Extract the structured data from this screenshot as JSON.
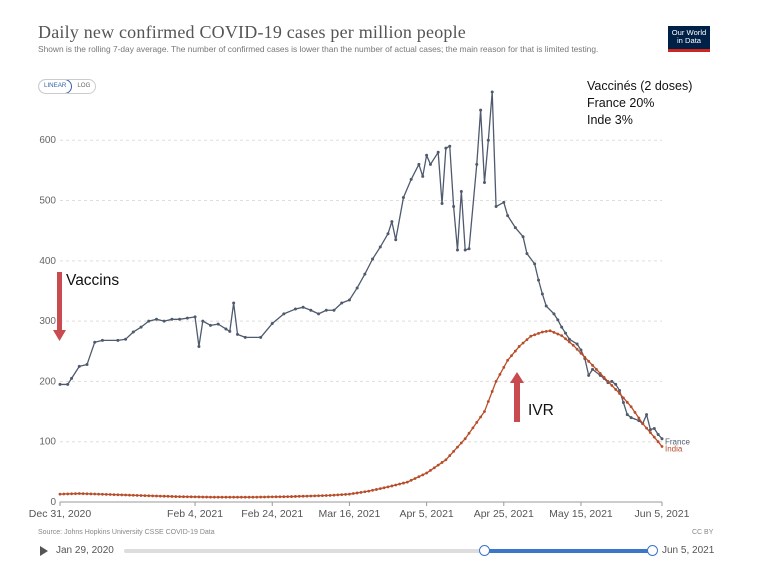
{
  "header": {
    "title": "Daily new confirmed COVID-19 cases per million people",
    "subtitle": "Shown is the rolling 7-day average. The number of confirmed cases is lower than the number of actual cases; the main reason for that is limited testing.",
    "logo_line1": "Our World",
    "logo_line2": "in Data",
    "logo_colors": {
      "bg": "#002147",
      "accent": "#ce261e"
    }
  },
  "controls": {
    "linear_label": "LINEAR",
    "log_label": "LOG",
    "active": "LINEAR"
  },
  "annotations": {
    "vaccines_box": [
      "Vaccinés (2 doses)",
      "France 20%",
      "Inde 3%"
    ],
    "vaccins_label": "Vaccins",
    "ivr_label": "IVR",
    "arrow_color": "#c94a4f"
  },
  "footer": {
    "source": "Source: Johns Hopkins University CSSE COVID-19 Data",
    "license": "CC BY",
    "timeline_start": "Jan 29, 2020",
    "timeline_end": "Jun 5, 2021"
  },
  "chart_data": {
    "type": "line",
    "title": "Daily new confirmed COVID-19 cases per million people",
    "xlabel": "",
    "ylabel": "",
    "ylim": [
      0,
      680
    ],
    "yticks": [
      0,
      100,
      200,
      300,
      400,
      500,
      600
    ],
    "xlim_days": [
      0,
      156
    ],
    "x_tick_labels": [
      {
        "day": 0,
        "label": "Dec 31, 2020"
      },
      {
        "day": 35,
        "label": "Feb 4, 2021"
      },
      {
        "day": 55,
        "label": "Feb 24, 2021"
      },
      {
        "day": 75,
        "label": "Mar 16, 2021"
      },
      {
        "day": 95,
        "label": "Apr 5, 2021"
      },
      {
        "day": 115,
        "label": "Apr 25, 2021"
      },
      {
        "day": 135,
        "label": "May 15, 2021"
      },
      {
        "day": 156,
        "label": "Jun 5, 2021"
      }
    ],
    "x_unit": "days since Dec 31, 2020",
    "series": [
      {
        "name": "France",
        "color": "#4f5a6e",
        "points": [
          [
            0,
            195
          ],
          [
            2,
            195
          ],
          [
            3,
            205
          ],
          [
            5,
            225
          ],
          [
            7,
            228
          ],
          [
            9,
            265
          ],
          [
            11,
            268
          ],
          [
            15,
            268
          ],
          [
            17,
            270
          ],
          [
            19,
            282
          ],
          [
            21,
            290
          ],
          [
            23,
            300
          ],
          [
            25,
            303
          ],
          [
            27,
            300
          ],
          [
            29,
            303
          ],
          [
            31,
            303
          ],
          [
            33,
            305
          ],
          [
            35,
            307
          ],
          [
            36,
            258
          ],
          [
            37,
            300
          ],
          [
            39,
            293
          ],
          [
            41,
            295
          ],
          [
            43,
            287
          ],
          [
            44,
            283
          ],
          [
            45,
            330
          ],
          [
            46,
            278
          ],
          [
            48,
            273
          ],
          [
            52,
            273
          ],
          [
            55,
            296
          ],
          [
            58,
            312
          ],
          [
            61,
            320
          ],
          [
            63,
            323
          ],
          [
            65,
            318
          ],
          [
            67,
            312
          ],
          [
            69,
            318
          ],
          [
            71,
            318
          ],
          [
            73,
            330
          ],
          [
            75,
            335
          ],
          [
            77,
            355
          ],
          [
            79,
            378
          ],
          [
            81,
            403
          ],
          [
            83,
            423
          ],
          [
            85,
            445
          ],
          [
            86,
            465
          ],
          [
            87,
            435
          ],
          [
            89,
            505
          ],
          [
            91,
            535
          ],
          [
            93,
            560
          ],
          [
            94,
            540
          ],
          [
            95,
            575
          ],
          [
            96,
            560
          ],
          [
            98,
            580
          ],
          [
            99,
            495
          ],
          [
            100,
            587
          ],
          [
            101,
            590
          ],
          [
            102,
            490
          ],
          [
            103,
            418
          ],
          [
            104,
            515
          ],
          [
            105,
            418
          ],
          [
            106,
            420
          ],
          [
            108,
            560
          ],
          [
            109,
            650
          ],
          [
            110,
            530
          ],
          [
            111,
            600
          ],
          [
            112,
            680
          ],
          [
            113,
            490
          ],
          [
            115,
            497
          ],
          [
            116,
            475
          ],
          [
            118,
            455
          ],
          [
            120,
            440
          ],
          [
            121,
            412
          ],
          [
            123,
            395
          ],
          [
            124,
            368
          ],
          [
            125,
            345
          ],
          [
            126,
            325
          ],
          [
            128,
            312
          ],
          [
            129,
            302
          ],
          [
            130,
            290
          ],
          [
            131,
            280
          ],
          [
            132,
            270
          ],
          [
            134,
            262
          ],
          [
            135,
            252
          ],
          [
            136,
            238
          ],
          [
            137,
            210
          ],
          [
            138,
            220
          ],
          [
            140,
            210
          ],
          [
            141,
            205
          ],
          [
            142,
            198
          ],
          [
            143,
            200
          ],
          [
            144,
            195
          ],
          [
            145,
            185
          ],
          [
            146,
            165
          ],
          [
            147,
            145
          ],
          [
            148,
            140
          ],
          [
            150,
            135
          ],
          [
            151,
            130
          ],
          [
            152,
            145
          ],
          [
            153,
            120
          ],
          [
            154,
            122
          ],
          [
            155,
            112
          ],
          [
            156,
            105
          ]
        ]
      },
      {
        "name": "India",
        "color": "#b84d2a",
        "points": [
          [
            0,
            13
          ],
          [
            5,
            14
          ],
          [
            10,
            13
          ],
          [
            20,
            11
          ],
          [
            30,
            9
          ],
          [
            40,
            8
          ],
          [
            50,
            8
          ],
          [
            60,
            9
          ],
          [
            70,
            11
          ],
          [
            75,
            13
          ],
          [
            80,
            18
          ],
          [
            85,
            25
          ],
          [
            90,
            33
          ],
          [
            95,
            48
          ],
          [
            100,
            70
          ],
          [
            105,
            105
          ],
          [
            110,
            150
          ],
          [
            113,
            200
          ],
          [
            116,
            235
          ],
          [
            119,
            258
          ],
          [
            122,
            275
          ],
          [
            125,
            282
          ],
          [
            127,
            284
          ],
          [
            130,
            276
          ],
          [
            133,
            260
          ],
          [
            136,
            240
          ],
          [
            139,
            220
          ],
          [
            142,
            200
          ],
          [
            145,
            180
          ],
          [
            148,
            158
          ],
          [
            151,
            130
          ],
          [
            153,
            115
          ],
          [
            155,
            100
          ],
          [
            156,
            92
          ]
        ]
      }
    ]
  }
}
